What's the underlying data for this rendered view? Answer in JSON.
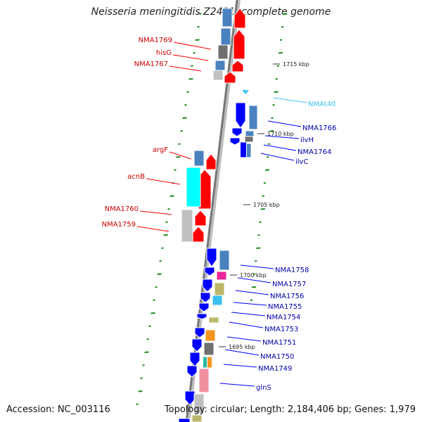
{
  "title": "Neisseria meningitidis Z2491, complete genome",
  "footer": {
    "accession": "Accession: NC_003116",
    "topology": "Topology: circular; Length: 2,184,406 bp; Genes: 1,979"
  },
  "ruler": [
    "1715 kbp",
    "1710 kbp",
    "1705 kbp",
    "1700 kbp",
    "1695 kbp"
  ],
  "colors": {
    "forward": "#ff0000",
    "reverse": "#0000ff",
    "trna": "#3fc3f0",
    "backbone": "#888888",
    "tick": "#1f8b1f",
    "cds_steel": "#4a82c0",
    "cds_cyan": "#00ffff",
    "cds_gray": "#c0c0c0",
    "cds_dark_gray": "#707070",
    "cds_pink": "#f08fa0",
    "cds_magenta": "#e8259a",
    "cds_khaki": "#bcb66a",
    "cds_orange": "#f5941c",
    "cds_sky": "#3cc0f0",
    "cds_teal": "#2ab7a8"
  },
  "labels_left": [
    "NMA1769",
    "hisG",
    "NMA1767",
    "argF",
    "acnB",
    "NMA1760",
    "NMA1759"
  ],
  "labels_right": [
    "NMAt40",
    "NMA1766",
    "ilvH",
    "NMA1764",
    "ilvC",
    "NMA1758",
    "NMA1757",
    "NMA1756",
    "NMA1755",
    "NMA1754",
    "NMA1753",
    "NMA1751",
    "NMA1750",
    "NMA1749",
    "glnS"
  ]
}
